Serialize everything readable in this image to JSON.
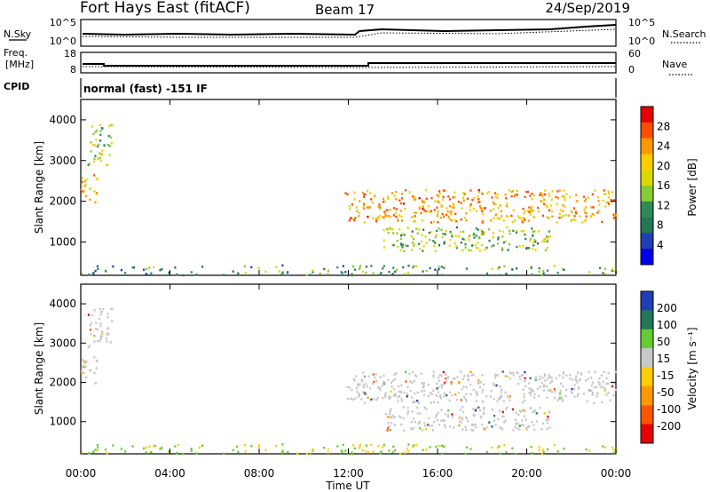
{
  "header": {
    "title": "Fort Hays East (fitACF)",
    "beam": "Beam 17",
    "date": "24/Sep/2019"
  },
  "nsky_panel": {
    "left_label": "N.Sky",
    "left_ticks": [
      "10^5",
      "10^0"
    ],
    "right_ticks": [
      "10^5",
      "10^0"
    ],
    "right_label": "N.Search"
  },
  "freq_panel": {
    "left_label_1": "Freq.",
    "left_label_2": "[MHz]",
    "left_ticks": [
      "18",
      "8"
    ],
    "right_ticks": [
      "60",
      "0"
    ],
    "right_label": "Nave"
  },
  "cpid_panel": {
    "left_label": "CPID",
    "text": "normal (fast) -151 IF"
  },
  "power_panel": {
    "ylabel": "Slant Range [km]",
    "yticks": [
      "4000",
      "3000",
      "2000",
      "1000"
    ],
    "colorbar_label": "Power [dB]",
    "colorbar_ticks": [
      "28",
      "24",
      "20",
      "16",
      "12",
      "8",
      "4"
    ],
    "colors": [
      "#e60000",
      "#ff4d00",
      "#ff9900",
      "#ffcc00",
      "#d9d900",
      "#88cc33",
      "#2e8b57",
      "#227755",
      "#1f3fb5",
      "#0000ee"
    ]
  },
  "velocity_panel": {
    "ylabel": "Slant Range [km]",
    "yticks": [
      "4000",
      "3000",
      "2000",
      "1000"
    ],
    "colorbar_label": "Velocity [m s⁻¹]",
    "colorbar_ticks": [
      "200",
      "100",
      "50",
      "15",
      "-15",
      "-50",
      "-100",
      "-200"
    ],
    "colors": [
      "#1f3fb5",
      "#227755",
      "#66cc33",
      "#c8c8c8",
      "#ffcc00",
      "#ff9900",
      "#ff5500",
      "#e60000"
    ]
  },
  "x_axis": {
    "ticks": [
      "00:00",
      "04:00",
      "08:00",
      "12:00",
      "16:00",
      "20:00",
      "00:00"
    ],
    "label": "Time UT"
  },
  "chart_data": {
    "type": "heatmap",
    "xlabel": "Time UT",
    "x_range": [
      "00:00",
      "24:00"
    ],
    "ylabel": "Slant Range [km]",
    "ylim": [
      180,
      4500
    ],
    "panels": [
      {
        "name": "Power [dB]",
        "clim": [
          0,
          30
        ]
      },
      {
        "name": "Velocity [m s⁻¹]",
        "clim": [
          -250,
          250
        ]
      }
    ],
    "scatter_regions": [
      {
        "t_start": 0.0,
        "t_end": 0.7,
        "r_low": 2000,
        "r_high": 2700,
        "power": 22,
        "velocity": 0
      },
      {
        "t_start": 0.3,
        "t_end": 1.4,
        "r_low": 2900,
        "r_high": 3900,
        "power": 14,
        "velocity": -40
      },
      {
        "t_start": 11.8,
        "t_end": 24.0,
        "r_low": 1500,
        "r_high": 2300,
        "power": 22,
        "velocity": 0
      },
      {
        "t_start": 13.5,
        "t_end": 21.0,
        "r_low": 800,
        "r_high": 1400,
        "power": 14,
        "velocity": 0
      },
      {
        "t_start": 0.0,
        "t_end": 24.0,
        "r_low": 200,
        "r_high": 450,
        "power": 10,
        "velocity": -20
      }
    ]
  }
}
